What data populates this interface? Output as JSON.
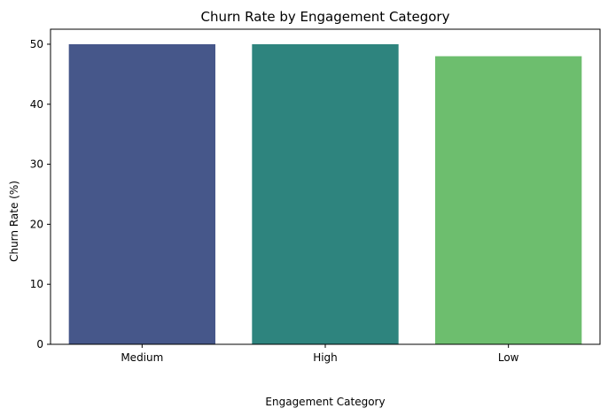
{
  "chart_data": {
    "type": "bar",
    "title": "Churn Rate by Engagement Category",
    "xlabel": "Engagement Category",
    "ylabel": "Churn Rate (%)",
    "categories": [
      "Medium",
      "High",
      "Low"
    ],
    "values": [
      50.0,
      50.0,
      48.0
    ],
    "colors": [
      "#46578a",
      "#2e847e",
      "#6dbe6e"
    ],
    "ylim": [
      0,
      52.5
    ],
    "yticks": [
      0,
      10,
      20,
      30,
      40,
      50
    ],
    "grid": false,
    "legend": false
  }
}
